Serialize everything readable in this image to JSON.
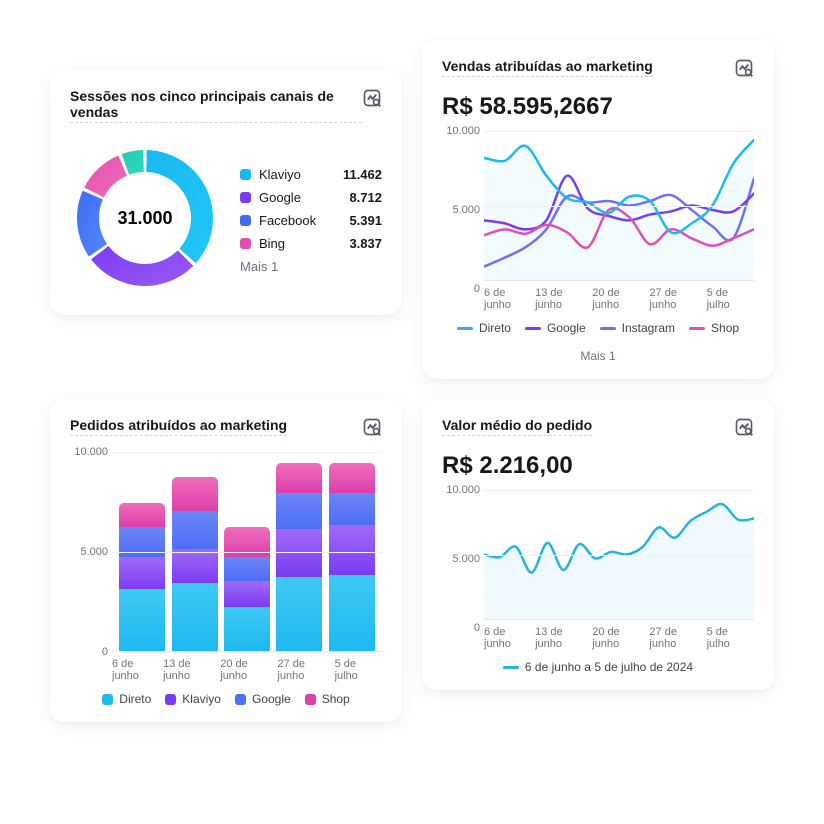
{
  "icon_color": "#5a5d66",
  "grid_color": "#eef0f3",
  "axis_text_color": "#71747c",
  "card_bg": "#ffffff",
  "donut": {
    "title": "Sessões nos cinco principais canais de vendas",
    "center_value": "31.000",
    "more_label": "Mais 1",
    "ring_width": 22,
    "gap_deg": 3,
    "segments": [
      {
        "label": "Klaviyo",
        "value_text": "11.462",
        "fraction": 0.37,
        "colorA": "#19b8f0",
        "colorB": "#22c7f5"
      },
      {
        "label": "Google",
        "value_text": "8.712",
        "fraction": 0.28,
        "colorA": "#7a3cf3",
        "colorB": "#9b5bf6"
      },
      {
        "label": "Facebook",
        "value_text": "5.391",
        "fraction": 0.17,
        "colorA": "#3d6df5",
        "colorB": "#5686f8"
      },
      {
        "label": "Bing",
        "value_text": "3.837",
        "fraction": 0.12,
        "colorA": "#e24fb0",
        "colorB": "#ef6dba"
      }
    ],
    "rest": {
      "fraction": 0.06,
      "colorA": "#1fcbb2",
      "colorB": "#2fd8c1"
    }
  },
  "sales": {
    "title": "Vendas atribuídas ao marketing",
    "value": "R$ 58.595,2667",
    "ylabels": [
      "10.000",
      "5.000",
      "0"
    ],
    "xlabels": [
      "6 de junho",
      "13 de junho",
      "20 de junho",
      "27 de junho",
      "5 de julho"
    ],
    "legend": [
      {
        "label": "Direto",
        "color": "#1db9ef"
      },
      {
        "label": "Google",
        "color": "#7a3cf3"
      },
      {
        "label": "Instagram",
        "color": "#6d70f5"
      },
      {
        "label": "Shop",
        "color": "#e24fb0"
      }
    ],
    "more_label": "Mais 1",
    "ymax": 10000,
    "series": {
      "direto": [
        8200,
        8000,
        9000,
        7000,
        5500,
        5200,
        4500,
        5600,
        5300,
        3200,
        3800,
        5000,
        7800,
        9400
      ],
      "google": [
        4000,
        3800,
        3400,
        4000,
        7000,
        4800,
        4300,
        4000,
        4400,
        4600,
        5000,
        4700,
        4600,
        5800
      ],
      "instagram": [
        900,
        1500,
        2200,
        3400,
        5600,
        5200,
        5300,
        5000,
        5300,
        5700,
        4700,
        3600,
        2800,
        6800
      ],
      "shop": [
        3000,
        3400,
        3100,
        3700,
        3200,
        2200,
        4700,
        4200,
        2400,
        3400,
        2800,
        2300,
        2800,
        3400
      ]
    }
  },
  "orders": {
    "title": "Pedidos atribuídos ao marketing",
    "ylabels": [
      "10.000",
      "5.000",
      "0"
    ],
    "xlabels": [
      "6 de junho",
      "13 de junho",
      "20 de junho",
      "27 de junho",
      "5 de julho"
    ],
    "ymax": 10000,
    "legend": [
      {
        "label": "Direto",
        "colorA": "#1db9ef",
        "colorB": "#3fc9f3"
      },
      {
        "label": "Klaviyo",
        "colorA": "#7a3cf3",
        "colorB": "#a06bf7"
      },
      {
        "label": "Google",
        "colorA": "#4d6ef5",
        "colorB": "#6d86f7"
      },
      {
        "label": "Shop",
        "colorA": "#dc3fab",
        "colorB": "#ef6dba"
      }
    ],
    "bars": [
      {
        "segments": [
          3100,
          1600,
          1500,
          1200
        ]
      },
      {
        "segments": [
          3400,
          1700,
          1900,
          1700
        ]
      },
      {
        "segments": [
          2200,
          1300,
          1200,
          1500
        ]
      },
      {
        "segments": [
          3700,
          2400,
          1800,
          1500
        ]
      },
      {
        "segments": [
          3800,
          2500,
          1600,
          1500
        ]
      }
    ]
  },
  "avg": {
    "title": "Valor médio do pedido",
    "value": "R$ 2.216,00",
    "ylabels": [
      "10.000",
      "5.000",
      "0"
    ],
    "xlabels": [
      "6 de junho",
      "13 de junho",
      "20 de junho",
      "27 de junho",
      "5 de julho"
    ],
    "ymax": 10000,
    "line_color": "#2ab1e0",
    "fill_color": "rgba(42,177,224,0.07)",
    "legend_label": "6 de junho a 5 de julho de 2024",
    "values": [
      5000,
      4800,
      5600,
      3600,
      5900,
      3800,
      5800,
      4700,
      5200,
      5000,
      5600,
      7100,
      6300,
      7600,
      8300,
      8900,
      7700,
      7800
    ]
  }
}
